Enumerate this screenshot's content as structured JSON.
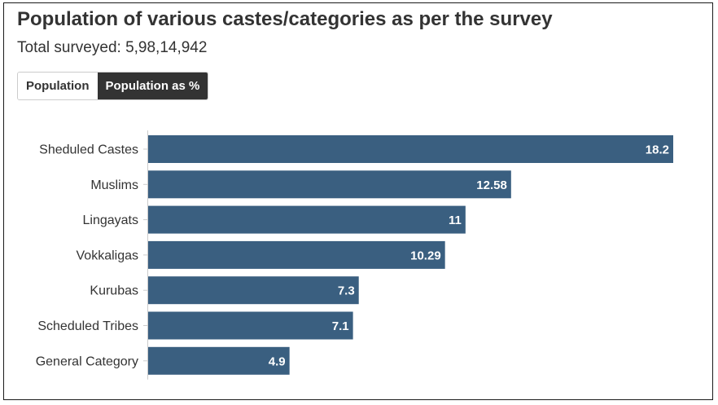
{
  "header": {
    "title": "Population of various castes/categories as per the survey",
    "subtitle": "Total surveyed: 5,98,14,942"
  },
  "toggle": {
    "options": [
      "Population",
      "Population as %"
    ],
    "active_index": 1
  },
  "colors": {
    "bar": "#3a5f80",
    "toggle_active_bg": "#333333"
  },
  "chart_data": {
    "type": "bar",
    "orientation": "horizontal",
    "categories": [
      "Sheduled Castes",
      "Muslims",
      "Lingayats",
      "Vokkaligas",
      "Kurubas",
      "Scheduled Tribes",
      "General Category"
    ],
    "values": [
      18.2,
      12.58,
      11,
      10.29,
      7.3,
      7.1,
      4.9
    ],
    "value_labels": [
      "18.2",
      "12.58",
      "11",
      "10.29",
      "7.3",
      "7.1",
      "4.9"
    ],
    "xlim": [
      0,
      18.2
    ],
    "grid": false,
    "legend": "none"
  }
}
